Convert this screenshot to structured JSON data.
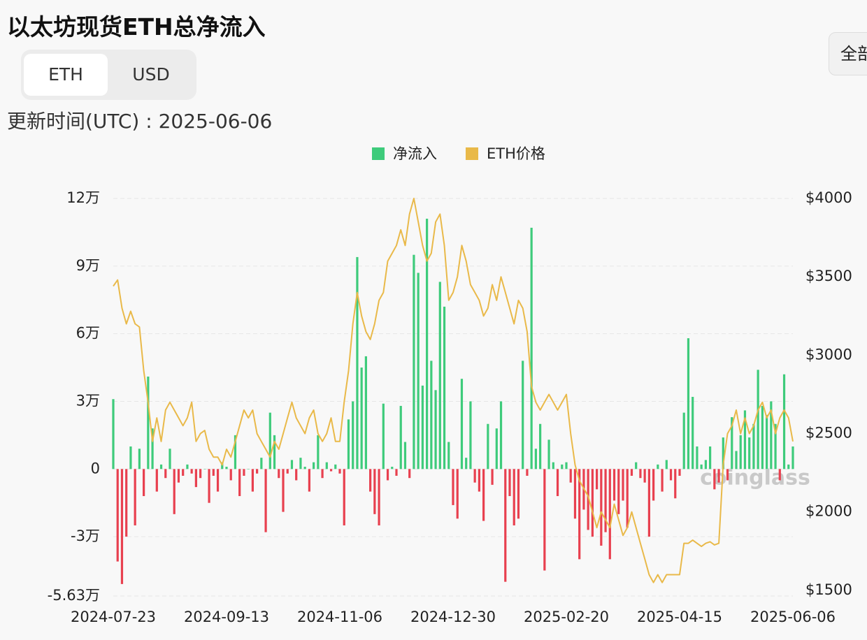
{
  "header": {
    "title": "以太坊现货ETH总净流入",
    "tabs": [
      "ETH",
      "USD"
    ],
    "updated": "更新时间(UTC) : 2025-06-06",
    "range_button": "全部",
    "watermark": "coinglass"
  },
  "chart_data": {
    "type": "bar_line",
    "categories": [
      "2024-07-23",
      null,
      null,
      null,
      null,
      null,
      null,
      null,
      null,
      null,
      null,
      null,
      null,
      null,
      null,
      null,
      null,
      null,
      null,
      null,
      null,
      null,
      null,
      null,
      null,
      null,
      "2024-09-13",
      null,
      null,
      null,
      null,
      null,
      null,
      null,
      null,
      null,
      null,
      null,
      null,
      null,
      null,
      null,
      null,
      null,
      null,
      null,
      null,
      null,
      null,
      null,
      null,
      null,
      "2024-11-06",
      null,
      null,
      null,
      null,
      null,
      null,
      null,
      null,
      null,
      null,
      null,
      null,
      null,
      null,
      null,
      null,
      null,
      null,
      null,
      null,
      null,
      null,
      null,
      null,
      null,
      "2024-12-30",
      null,
      null,
      null,
      null,
      null,
      null,
      null,
      null,
      null,
      null,
      null,
      null,
      null,
      null,
      null,
      null,
      null,
      null,
      null,
      null,
      null,
      null,
      null,
      null,
      null,
      "2025-02-20",
      null,
      null,
      null,
      null,
      null,
      null,
      null,
      null,
      null,
      null,
      null,
      null,
      null,
      null,
      null,
      null,
      null,
      null,
      null,
      null,
      null,
      null,
      null,
      null,
      null,
      "2025-04-15",
      null,
      null,
      null,
      null,
      null,
      null,
      null,
      null,
      null,
      null,
      null,
      null,
      null,
      null,
      null,
      null,
      null,
      null,
      null,
      null,
      null,
      null,
      null,
      null,
      null,
      "2025-06-06"
    ],
    "series": [
      {
        "name": "净流入",
        "color": "#3ecb7b",
        "negative_color": "#e8404f",
        "values": [
          31000,
          -41000,
          -51000,
          -30000,
          10000,
          -25000,
          9000,
          -12000,
          41000,
          18000,
          -10000,
          2000,
          -4000,
          9000,
          -20000,
          -6000,
          -3000,
          2000,
          -2000,
          -8000,
          -4000,
          0,
          -15000,
          -3000,
          -10000,
          3000,
          1000,
          -5000,
          15000,
          -12000,
          -3000,
          0,
          -10000,
          -2000,
          5000,
          -28000,
          25000,
          15000,
          -4000,
          -19000,
          -2000,
          4000,
          -5000,
          5000,
          1000,
          -10000,
          3000,
          15000,
          -4000,
          3000,
          -1000,
          2000,
          -2000,
          -25000,
          22000,
          30000,
          94000,
          45000,
          50000,
          -10000,
          -20000,
          -25000,
          29000,
          -5000,
          1000,
          -3000,
          28000,
          12000,
          -4000,
          95000,
          87000,
          37000,
          111000,
          48000,
          35000,
          83000,
          72000,
          12000,
          -16000,
          -22000,
          40000,
          5000,
          30000,
          -6000,
          -10000,
          -23000,
          20000,
          -7000,
          18000,
          30000,
          -50000,
          -12000,
          -25000,
          -22000,
          48000,
          -3000,
          107000,
          9000,
          20000,
          -45000,
          13000,
          3000,
          -12000,
          2000,
          3000,
          -6000,
          -22000,
          -40000,
          -18000,
          -27000,
          -30000,
          -9000,
          -34000,
          -28000,
          -40000,
          -14000,
          -20000,
          -14000,
          -26000,
          -3000,
          3000,
          -4000,
          -6000,
          -30000,
          -14000,
          2000,
          -10000,
          4000,
          -5000,
          -13000,
          -3000,
          25000,
          58000,
          32000,
          10000,
          2000,
          4000,
          10000,
          -9000,
          -6000,
          14000,
          -5000,
          23000,
          8000,
          15000,
          26000,
          14000,
          20000,
          44000,
          28000,
          24000,
          30000,
          20000,
          -5000,
          42000,
          2000,
          10000
        ]
      },
      {
        "name": "ETH价格",
        "color": "#e9b949",
        "axis": "y2",
        "values": [
          3440,
          3480,
          3300,
          3200,
          3280,
          3200,
          3180,
          2900,
          2700,
          2450,
          2600,
          2450,
          2650,
          2700,
          2650,
          2600,
          2550,
          2600,
          2700,
          2450,
          2500,
          2520,
          2400,
          2350,
          2350,
          2300,
          2400,
          2350,
          2450,
          2550,
          2650,
          2600,
          2650,
          2500,
          2450,
          2400,
          2350,
          2450,
          2400,
          2500,
          2600,
          2700,
          2600,
          2550,
          2500,
          2600,
          2650,
          2500,
          2450,
          2500,
          2600,
          2450,
          2450,
          2700,
          2900,
          3200,
          3400,
          3250,
          3150,
          3100,
          3200,
          3350,
          3400,
          3600,
          3650,
          3700,
          3800,
          3700,
          3900,
          4000,
          3850,
          3700,
          3600,
          3650,
          3850,
          3900,
          3700,
          3350,
          3400,
          3500,
          3700,
          3600,
          3450,
          3400,
          3350,
          3250,
          3300,
          3450,
          3350,
          3500,
          3400,
          3300,
          3200,
          3350,
          3300,
          3150,
          2800,
          2700,
          2650,
          2700,
          2750,
          2700,
          2650,
          2700,
          2750,
          2500,
          2300,
          2200,
          2150,
          2100,
          2000,
          1900,
          2000,
          1950,
          1900,
          2050,
          1950,
          1850,
          1900,
          2000,
          1900,
          1800,
          1700,
          1600,
          1550,
          1600,
          1550,
          1600,
          1600,
          1600,
          1600,
          1800,
          1800,
          1820,
          1800,
          1780,
          1800,
          1810,
          1790,
          1800,
          2300,
          2500,
          2550,
          2650,
          2500,
          2600,
          2500,
          2550,
          2650,
          2700,
          2600,
          2650,
          2500,
          2600,
          2650,
          2600,
          2450
        ]
      }
    ],
    "ylim": [
      -56300,
      120000
    ],
    "yticks": [
      {
        "value": -56300,
        "label": "-5.63万"
      },
      {
        "value": -30000,
        "label": "-3万"
      },
      0,
      {
        "value": 30000,
        "label": "3万"
      },
      {
        "value": 60000,
        "label": "6万"
      },
      {
        "value": 90000,
        "label": "9万"
      },
      {
        "value": 120000,
        "label": "12万"
      }
    ],
    "y2lim": [
      1464,
      4000
    ],
    "y2ticks": [
      {
        "value": 1500,
        "label": "$1500"
      },
      {
        "value": 2000,
        "label": "$2000"
      },
      {
        "value": 2500,
        "label": "$2500"
      },
      {
        "value": 3000,
        "label": "$3000"
      },
      {
        "value": 3500,
        "label": "$3500"
      },
      {
        "value": 4000,
        "label": "$4000"
      }
    ],
    "grid": true
  }
}
